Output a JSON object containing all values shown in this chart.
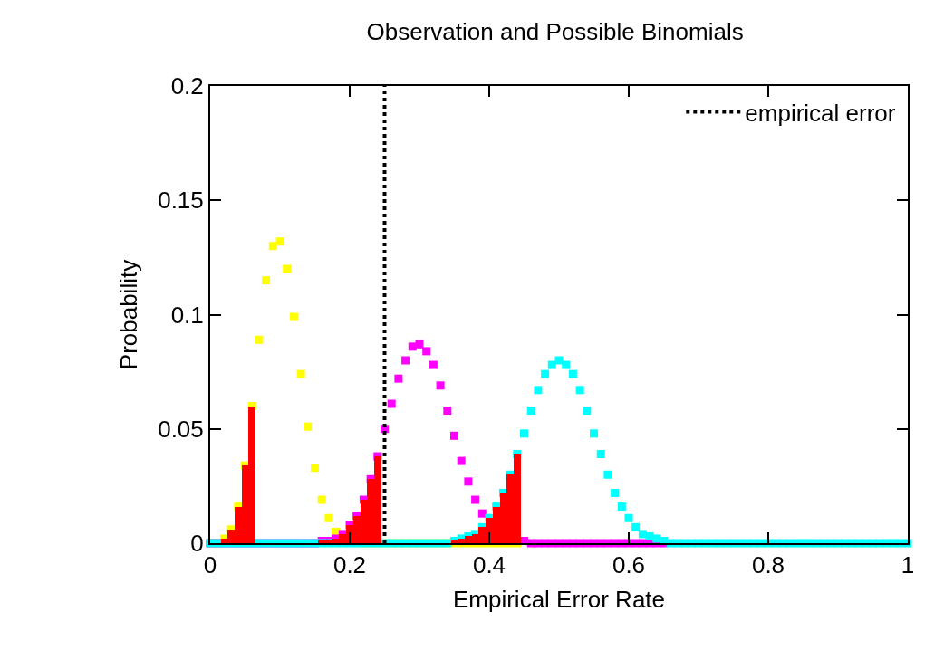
{
  "chart_data": {
    "type": "scatter",
    "title": "Observation and Possible Binomials",
    "xlabel": "Empirical Error Rate",
    "ylabel": "Probability",
    "xlim": [
      0,
      1
    ],
    "xticks": [
      0,
      0.2,
      0.4,
      0.6,
      0.8,
      1
    ],
    "ylim": [
      0,
      0.2
    ],
    "yticks": [
      0,
      0.05,
      0.1,
      0.15,
      0.2
    ],
    "legend": "top right",
    "marker": "square",
    "series": [
      {
        "type": "bar",
        "color": "#ff0000",
        "x": [
          0,
          0.01,
          0.02,
          0.03,
          0.04,
          0.05,
          0.06
        ],
        "values": [
          0,
          0,
          0.002,
          0.006,
          0.016,
          0.034,
          0.06
        ]
      },
      {
        "type": "bar",
        "color": "#ff0000",
        "x": [
          0.15,
          0.16,
          0.17,
          0.18,
          0.19,
          0.2,
          0.21,
          0.22,
          0.23,
          0.24
        ],
        "values": [
          0,
          0.001,
          0.001,
          0.002,
          0.004,
          0.008,
          0.012,
          0.019,
          0.028,
          0.038
        ]
      },
      {
        "type": "bar",
        "color": "#ff0000",
        "x": [
          0.33,
          0.34,
          0.35,
          0.36,
          0.37,
          0.38,
          0.39,
          0.4,
          0.41,
          0.42,
          0.43,
          0.44
        ],
        "values": [
          0,
          0,
          0.001,
          0.002,
          0.003,
          0.004,
          0.007,
          0.011,
          0.016,
          0.022,
          0.03,
          0.039
        ]
      },
      {
        "color": "#ffff00",
        "x": [
          0,
          0.01,
          0.02,
          0.03,
          0.04,
          0.05,
          0.06,
          0.07,
          0.08,
          0.09,
          0.1,
          0.11,
          0.12,
          0.13,
          0.14,
          0.15,
          0.16,
          0.17,
          0.18,
          0.19,
          0.2,
          0.21,
          0.22,
          0.23,
          0.24,
          0.25,
          0.26,
          0.27,
          0.28,
          0.29,
          0.3,
          0.31,
          0.32,
          0.33,
          0.34,
          0.35,
          0.36,
          0.37,
          0.38,
          0.39,
          0.4,
          0.41,
          0.42,
          0.43,
          0.44
        ],
        "values": [
          0,
          0,
          0.002,
          0.006,
          0.016,
          0.034,
          0.06,
          0.089,
          0.115,
          0.13,
          0.132,
          0.12,
          0.099,
          0.074,
          0.051,
          0.033,
          0.019,
          0.011,
          0.005,
          null,
          null,
          null,
          0,
          0,
          0,
          0,
          0,
          0,
          0,
          0,
          0,
          0,
          0,
          0,
          0,
          0,
          0,
          0,
          0,
          0,
          0,
          0,
          0,
          0,
          0
        ]
      },
      {
        "color": "#ff00ff",
        "x": [
          0,
          0.01,
          0.02,
          0.03,
          0.04,
          0.05,
          0.06,
          0.07,
          0.08,
          0.09,
          0.1,
          0.11,
          0.12,
          0.13,
          0.14,
          0.15,
          0.16,
          0.17,
          0.18,
          0.19,
          0.2,
          0.21,
          0.22,
          0.23,
          0.24,
          0.25,
          0.26,
          0.27,
          0.28,
          0.29,
          0.3,
          0.31,
          0.32,
          0.33,
          0.34,
          0.35,
          0.36,
          0.37,
          0.38,
          0.39,
          0.4,
          0.41,
          0.42,
          0.43,
          0.44,
          0.45,
          0.46,
          0.47,
          0.48,
          0.49,
          0.5,
          0.51,
          0.52,
          0.53,
          0.54,
          0.55,
          0.56,
          0.57,
          0.58,
          0.59,
          0.6,
          0.61,
          0.62,
          0.63,
          0.64,
          0.65
        ],
        "values": [
          0,
          0,
          0,
          0,
          0,
          0,
          0,
          0,
          0,
          0,
          0,
          0,
          0,
          0,
          0,
          0,
          0.001,
          0.001,
          0.002,
          0.004,
          0.008,
          0.012,
          0.019,
          0.028,
          0.038,
          0.05,
          0.061,
          0.072,
          0.08,
          0.086,
          0.087,
          0.084,
          0.078,
          0.069,
          0.058,
          0.047,
          0.036,
          0.027,
          0.019,
          0.013,
          null,
          null,
          null,
          null,
          null,
          0.001,
          0,
          0,
          0,
          0,
          0,
          0,
          0,
          0,
          0,
          0,
          0,
          0,
          0,
          0,
          0,
          0,
          0,
          0,
          0,
          0
        ]
      },
      {
        "color": "#00ffff",
        "x": [
          0,
          0.01,
          0.02,
          0.03,
          0.04,
          0.05,
          0.06,
          0.07,
          0.08,
          0.09,
          0.1,
          0.11,
          0.12,
          0.13,
          0.14,
          0.15,
          0.16,
          0.17,
          0.18,
          0.19,
          0.2,
          0.21,
          0.22,
          0.23,
          0.24,
          0.25,
          0.26,
          0.27,
          0.28,
          0.29,
          0.3,
          0.31,
          0.32,
          0.33,
          0.34,
          0.35,
          0.36,
          0.37,
          0.38,
          0.39,
          0.4,
          0.41,
          0.42,
          0.43,
          0.44,
          0.45,
          0.46,
          0.47,
          0.48,
          0.49,
          0.5,
          0.51,
          0.52,
          0.53,
          0.54,
          0.55,
          0.56,
          0.57,
          0.58,
          0.59,
          0.6,
          0.61,
          0.62,
          0.63,
          0.64,
          0.65,
          0.66,
          0.67,
          0.68,
          0.69,
          0.7,
          0.71,
          0.72,
          0.73,
          0.74,
          0.75,
          0.76,
          0.77,
          0.78,
          0.79,
          0.8,
          0.81,
          0.82,
          0.83,
          0.84,
          0.85,
          0.86,
          0.87,
          0.88,
          0.89,
          0.9,
          0.91,
          0.92,
          0.93,
          0.94,
          0.95,
          0.96,
          0.97,
          0.98,
          0.99,
          1
        ],
        "values": [
          0,
          0,
          0,
          0,
          0,
          0,
          0,
          0,
          0,
          0,
          0,
          0,
          0,
          0,
          0,
          0,
          0,
          0,
          0,
          0,
          0,
          0,
          0,
          0,
          0,
          0,
          0,
          0,
          0,
          0,
          0,
          0,
          0,
          0,
          0,
          0.001,
          0.002,
          0.003,
          0.004,
          0.007,
          0.011,
          0.016,
          0.022,
          0.03,
          0.039,
          0.048,
          0.058,
          0.067,
          0.074,
          0.078,
          0.08,
          0.078,
          0.074,
          0.067,
          0.058,
          0.048,
          0.039,
          0.03,
          0.022,
          0.016,
          0.011,
          0.007,
          0.004,
          0.003,
          0.002,
          0.001,
          0,
          0,
          0,
          0,
          0,
          0,
          0,
          0,
          0,
          0,
          0,
          0,
          0,
          0,
          0,
          0,
          0,
          0,
          0,
          0,
          0,
          0,
          0,
          0,
          0,
          0,
          0,
          0,
          0,
          0,
          0,
          0,
          0,
          0,
          0
        ]
      }
    ],
    "ref_lines": [
      {
        "axis": "x",
        "value": 0.25,
        "label": "empirical error",
        "color": "#000000",
        "line_style": "dotted"
      }
    ]
  }
}
